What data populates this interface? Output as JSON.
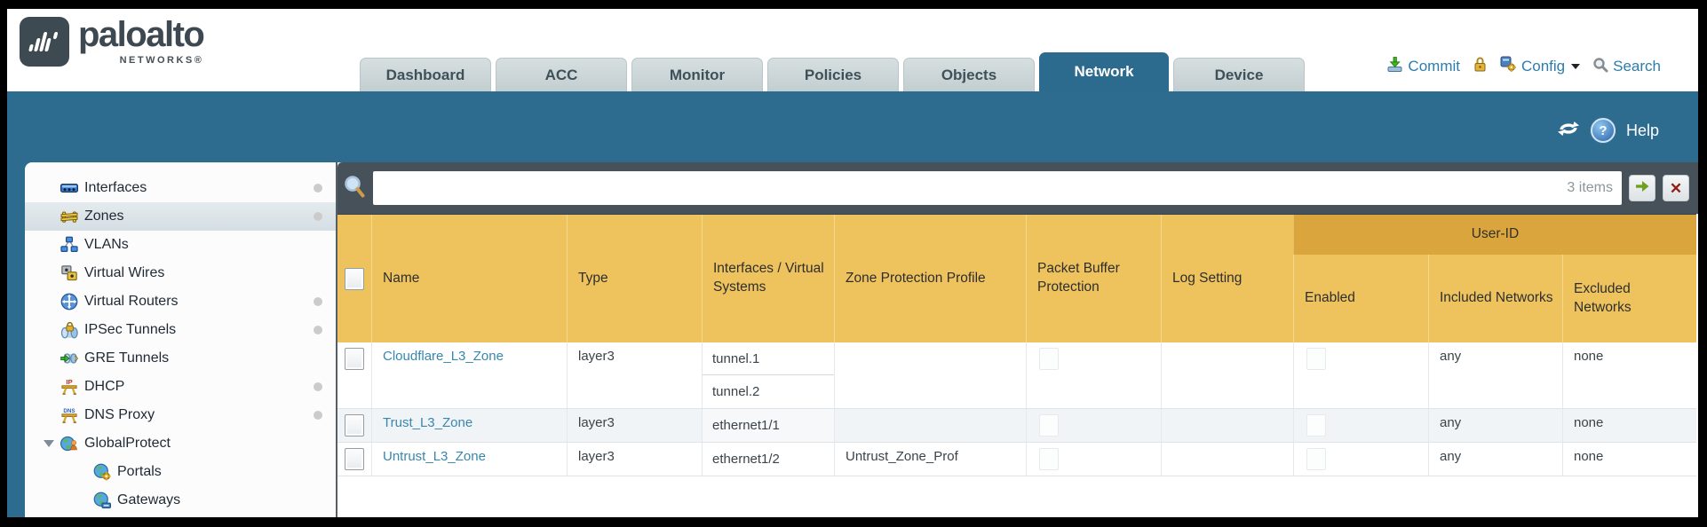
{
  "brand": {
    "name": "paloalto",
    "subname": "NETWORKS®"
  },
  "nav_tabs": [
    {
      "label": "Dashboard",
      "active": false
    },
    {
      "label": "ACC",
      "active": false
    },
    {
      "label": "Monitor",
      "active": false
    },
    {
      "label": "Policies",
      "active": false
    },
    {
      "label": "Objects",
      "active": false
    },
    {
      "label": "Network",
      "active": true
    },
    {
      "label": "Device",
      "active": false
    }
  ],
  "utilities": {
    "commit_label": "Commit",
    "config_label": "Config",
    "search_label": "Search",
    "icons": [
      "commit-icon",
      "lock-icon",
      "config-icon",
      "caret-down-icon",
      "search-icon"
    ]
  },
  "subheader": {
    "help_label": "Help",
    "icons": [
      "refresh-icon",
      "help-icon"
    ]
  },
  "sidebar": {
    "items": [
      {
        "label": "Interfaces",
        "icon": "interfaces-icon",
        "selected": false,
        "dot": true,
        "child": false
      },
      {
        "label": "Zones",
        "icon": "zones-icon",
        "selected": true,
        "dot": true,
        "child": false
      },
      {
        "label": "VLANs",
        "icon": "vlans-icon",
        "selected": false,
        "dot": false,
        "child": false
      },
      {
        "label": "Virtual Wires",
        "icon": "virtual-wires-icon",
        "selected": false,
        "dot": false,
        "child": false
      },
      {
        "label": "Virtual Routers",
        "icon": "virtual-routers-icon",
        "selected": false,
        "dot": true,
        "child": false
      },
      {
        "label": "IPSec Tunnels",
        "icon": "ipsec-tunnels-icon",
        "selected": false,
        "dot": true,
        "child": false
      },
      {
        "label": "GRE Tunnels",
        "icon": "gre-tunnels-icon",
        "selected": false,
        "dot": false,
        "child": false
      },
      {
        "label": "DHCP",
        "icon": "dhcp-icon",
        "selected": false,
        "dot": true,
        "child": false
      },
      {
        "label": "DNS Proxy",
        "icon": "dns-proxy-icon",
        "selected": false,
        "dot": true,
        "child": false
      },
      {
        "label": "GlobalProtect",
        "icon": "globalprotect-icon",
        "selected": false,
        "dot": false,
        "child": false,
        "expanded": true
      },
      {
        "label": "Portals",
        "icon": "portals-icon",
        "selected": false,
        "dot": false,
        "child": true
      },
      {
        "label": "Gateways",
        "icon": "gateways-icon",
        "selected": false,
        "dot": false,
        "child": true
      }
    ]
  },
  "toolbar": {
    "filter_value": "",
    "items_count": "3 items",
    "icons": [
      "magnifier-icon",
      "apply-filter-icon",
      "clear-filter-icon"
    ]
  },
  "table": {
    "group_header": "User-ID",
    "columns": [
      "",
      "Name",
      "Type",
      "Interfaces / Virtual Systems",
      "Zone Protection Profile",
      "Packet Buffer Protection",
      "Log Setting",
      "Enabled",
      "Included Networks",
      "Excluded Networks"
    ],
    "rows": [
      {
        "name": "Cloudflare_L3_Zone",
        "type": "layer3",
        "interfaces": [
          "tunnel.1",
          "tunnel.2"
        ],
        "zone_protection_profile": "",
        "packet_buffer_protection_checked": false,
        "log_setting": "",
        "user_id_enabled_checked": false,
        "included_networks": "any",
        "excluded_networks": "none"
      },
      {
        "name": "Trust_L3_Zone",
        "type": "layer3",
        "interfaces": [
          "ethernet1/1"
        ],
        "zone_protection_profile": "",
        "packet_buffer_protection_checked": false,
        "log_setting": "",
        "user_id_enabled_checked": false,
        "included_networks": "any",
        "excluded_networks": "none"
      },
      {
        "name": "Untrust_L3_Zone",
        "type": "layer3",
        "interfaces": [
          "ethernet1/2"
        ],
        "zone_protection_profile": "Untrust_Zone_Prof",
        "packet_buffer_protection_checked": false,
        "log_setting": "",
        "user_id_enabled_checked": false,
        "included_networks": "any",
        "excluded_networks": "none"
      }
    ]
  },
  "colors": {
    "accent_teal": "#2e6c8f",
    "header_orange": "#eec35e",
    "header_orange_dark": "#daa53c",
    "link_blue": "#3787ae",
    "strip_gray": "#46515a"
  }
}
